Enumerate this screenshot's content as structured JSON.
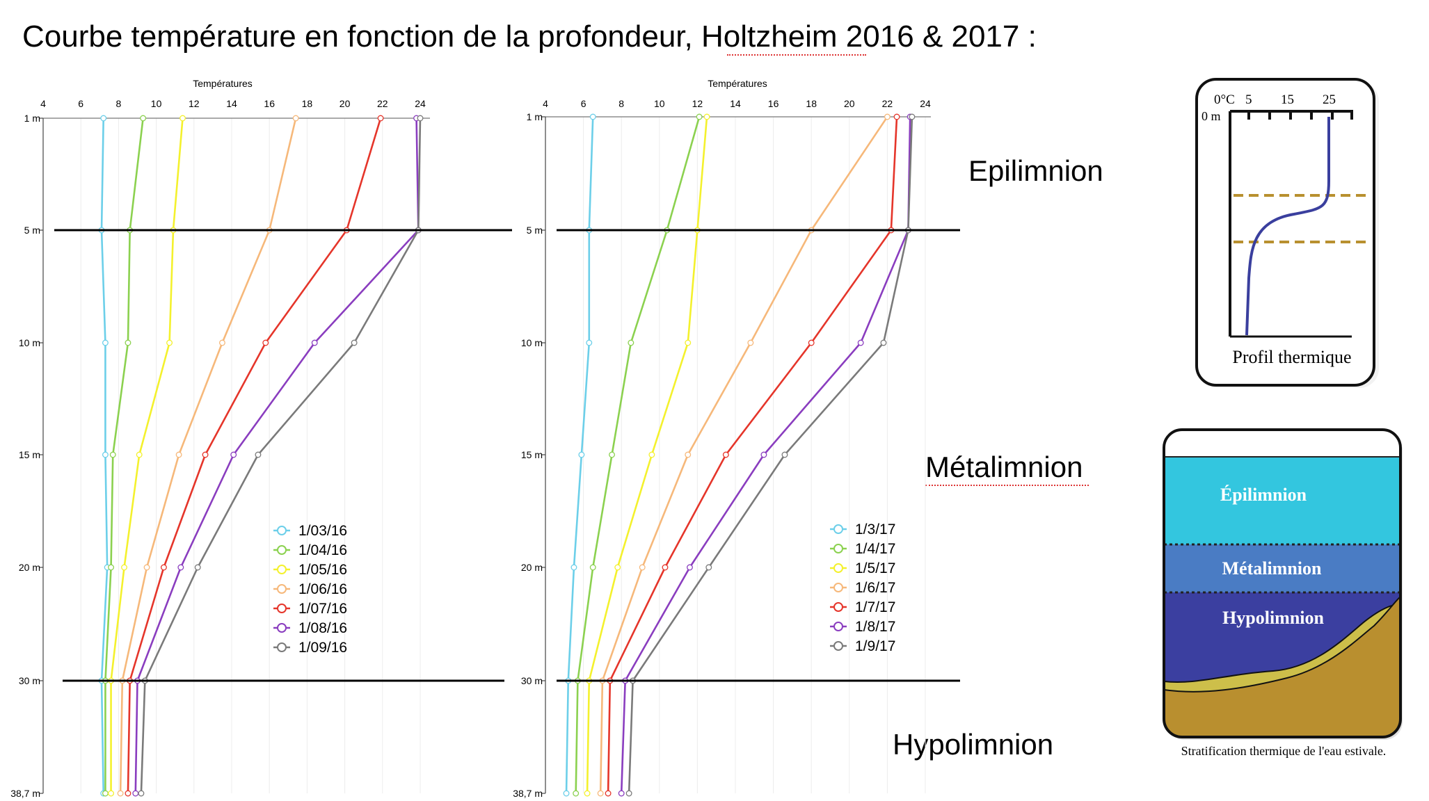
{
  "page": {
    "title": "Courbe température en fonction de la profondeur, Holtzheim 2016 & 2017 :"
  },
  "zones": {
    "epilimnion": "Epilimnion",
    "metalimnion": "Métalimnion",
    "hypolimnion": "Hypolimnion"
  },
  "chart_data": [
    {
      "type": "line",
      "orientation": "depth profile (x = temperature, y = depth)",
      "title": "",
      "xlabel": "Températures",
      "ylabel": "",
      "xlim": [
        4,
        25
      ],
      "x_ticks": [
        4,
        6,
        8,
        10,
        12,
        14,
        16,
        18,
        20,
        22,
        24
      ],
      "depth_labels": [
        "1 m",
        "5 m",
        "10 m",
        "15 m",
        "20 m",
        "30 m",
        "38,7 m"
      ],
      "legend_position": "center-right",
      "series": [
        {
          "name": "1/03/16",
          "color": "#6ccfe9",
          "values": [
            7.2,
            7.1,
            7.3,
            7.3,
            7.4,
            7.1,
            7.2
          ]
        },
        {
          "name": "1/04/16",
          "color": "#8bd14f",
          "values": [
            9.3,
            8.6,
            8.5,
            7.7,
            7.6,
            7.3,
            7.3
          ]
        },
        {
          "name": "1/05/16",
          "color": "#f4f12d",
          "values": [
            11.4,
            10.9,
            10.7,
            9.1,
            8.3,
            7.6,
            7.6
          ]
        },
        {
          "name": "1/06/16",
          "color": "#f6b87a",
          "values": [
            17.4,
            16.0,
            13.5,
            11.2,
            9.5,
            8.2,
            8.1
          ]
        },
        {
          "name": "1/07/16",
          "color": "#e5352a",
          "values": [
            21.9,
            20.1,
            15.8,
            12.6,
            10.4,
            8.6,
            8.5
          ]
        },
        {
          "name": "1/08/16",
          "color": "#8a3dbf",
          "values": [
            23.8,
            23.9,
            18.4,
            14.1,
            11.3,
            9.0,
            8.9
          ]
        },
        {
          "name": "1/09/16",
          "color": "#7a7a7a",
          "values": [
            24.0,
            23.9,
            20.5,
            15.4,
            12.2,
            9.4,
            9.2
          ]
        }
      ]
    },
    {
      "type": "line",
      "orientation": "depth profile (x = temperature, y = depth)",
      "title": "",
      "xlabel": "Températures",
      "ylabel": "",
      "xlim": [
        4,
        25
      ],
      "x_ticks": [
        4,
        6,
        8,
        10,
        12,
        14,
        16,
        18,
        20,
        22,
        24
      ],
      "depth_labels": [
        "1 m",
        "5 m",
        "10 m",
        "15 m",
        "20 m",
        "30 m",
        "38,7 m"
      ],
      "legend_position": "center-right",
      "series": [
        {
          "name": "1/3/17",
          "color": "#6ccfe9",
          "values": [
            6.5,
            6.3,
            6.3,
            5.9,
            5.5,
            5.2,
            5.1
          ]
        },
        {
          "name": "1/4/17",
          "color": "#8bd14f",
          "values": [
            12.1,
            10.4,
            8.5,
            7.5,
            6.5,
            5.7,
            5.6
          ]
        },
        {
          "name": "1/5/17",
          "color": "#f4f12d",
          "values": [
            12.5,
            12.0,
            11.5,
            9.6,
            7.8,
            6.3,
            6.2
          ]
        },
        {
          "name": "1/6/17",
          "color": "#f6b87a",
          "values": [
            22.0,
            18.0,
            14.8,
            11.5,
            9.1,
            7.0,
            6.9
          ]
        },
        {
          "name": "1/7/17",
          "color": "#e5352a",
          "values": [
            22.5,
            22.2,
            18.0,
            13.5,
            10.3,
            7.4,
            7.3
          ]
        },
        {
          "name": "1/8/17",
          "color": "#8a3dbf",
          "values": [
            23.2,
            23.1,
            20.6,
            15.5,
            11.6,
            8.2,
            8.0
          ]
        },
        {
          "name": "1/9/17",
          "color": "#7a7a7a",
          "values": [
            23.3,
            23.1,
            21.8,
            16.6,
            12.6,
            8.6,
            8.4
          ]
        }
      ]
    }
  ],
  "profile_diagram": {
    "axis_label": "0°C",
    "ticks": [
      "5",
      "15",
      "25"
    ],
    "depth_label": "0 m",
    "caption": "Profil thermique"
  },
  "stratification_diagram": {
    "layers": [
      "Épilimnion",
      "Métalimnion",
      "Hypolimnion"
    ],
    "caption": "Stratification thermique de l'eau estivale.",
    "colors": {
      "epilimnion": "#33c6df",
      "metalimnion": "#4a7cc4",
      "hypolimnion": "#3b3fa0",
      "sediment": "#b98f2f",
      "sand": "#cdbf4a"
    }
  }
}
